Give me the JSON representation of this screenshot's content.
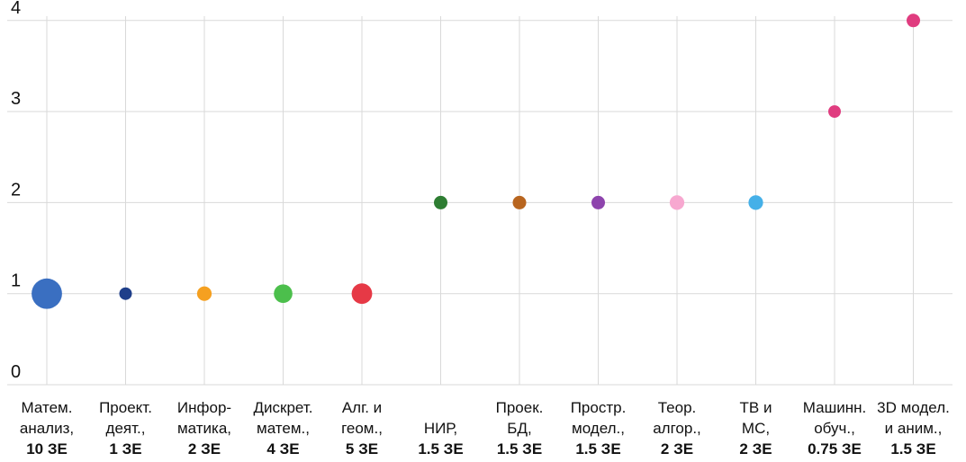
{
  "chart_data": {
    "type": "scatter",
    "title": "",
    "xlabel": "",
    "ylabel": "",
    "ylim": [
      0,
      4
    ],
    "yticks": [
      "0",
      "1",
      "2",
      "3",
      "4"
    ],
    "grid": true,
    "legend": "none",
    "categories": [
      {
        "lines": [
          "Матем.",
          "анализ,"
        ],
        "credits": "10 ЗЕ",
        "y": 1,
        "size": 10,
        "color": "#3a6fc1"
      },
      {
        "lines": [
          "Проект.",
          "деят.,"
        ],
        "credits": "1 ЗЕ",
        "y": 1,
        "size": 1,
        "color": "#1f3f8a"
      },
      {
        "lines": [
          "Инфор-",
          "матика,"
        ],
        "credits": "2 ЗЕ",
        "y": 1,
        "size": 2,
        "color": "#f5a020"
      },
      {
        "lines": [
          "Дискрет.",
          "матем.,"
        ],
        "credits": "4 ЗЕ",
        "y": 1,
        "size": 4,
        "color": "#4cbf4c"
      },
      {
        "lines": [
          "Алг. и",
          "геом.,"
        ],
        "credits": "5 ЗЕ",
        "y": 1,
        "size": 5,
        "color": "#e63946"
      },
      {
        "lines": [
          "НИР,"
        ],
        "credits": "1.5 ЗЕ",
        "y": 2,
        "size": 1.5,
        "color": "#2e7d32"
      },
      {
        "lines": [
          "Проек.",
          "БД,"
        ],
        "credits": "1.5 ЗЕ",
        "y": 2,
        "size": 1.5,
        "color": "#b8651f"
      },
      {
        "lines": [
          "Простр.",
          "модел.,"
        ],
        "credits": "1.5 ЗЕ",
        "y": 2,
        "size": 1.5,
        "color": "#8e44ad"
      },
      {
        "lines": [
          "Теор.",
          "алгор.,"
        ],
        "credits": "2 ЗЕ",
        "y": 2,
        "size": 2,
        "color": "#f7a8d0"
      },
      {
        "lines": [
          "ТВ и",
          "МС,"
        ],
        "credits": "2 ЗЕ",
        "y": 2,
        "size": 2,
        "color": "#45b0e8"
      },
      {
        "lines": [
          "Машинн.",
          "обуч.,"
        ],
        "credits": "0.75 ЗЕ",
        "y": 3,
        "size": 0.75,
        "color": "#e03c7f"
      },
      {
        "lines": [
          "3D модел.",
          "и аним.,"
        ],
        "credits": "1.5 ЗЕ",
        "y": 4,
        "size": 1.5,
        "color": "#e03c7f"
      }
    ]
  }
}
